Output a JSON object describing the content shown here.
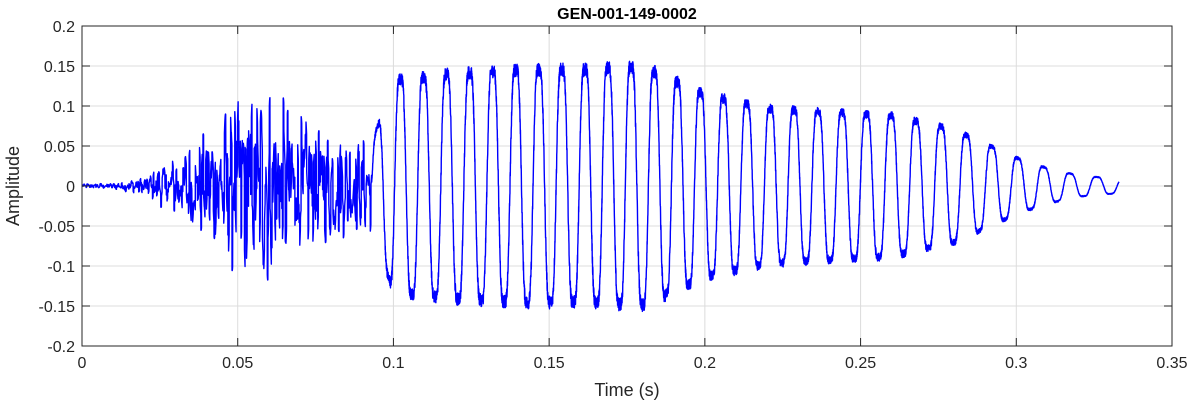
{
  "chart_data": {
    "type": "line",
    "title": "GEN-001-149-0002",
    "xlabel": "Time (s)",
    "ylabel": "Amplitude",
    "xlim": [
      0,
      0.35
    ],
    "ylim": [
      -0.2,
      0.2
    ],
    "grid": true,
    "xticks": [
      0,
      0.05,
      0.1,
      0.15,
      0.2,
      0.25,
      0.3,
      0.35
    ],
    "xtick_labels": [
      "0",
      "0.05",
      "0.1",
      "0.15",
      "0.2",
      "0.25",
      "0.3",
      "0.35"
    ],
    "yticks": [
      -0.2,
      -0.15,
      -0.1,
      -0.05,
      0,
      0.05,
      0.1,
      0.15,
      0.2
    ],
    "ytick_labels": [
      "-0.2",
      "-0.15",
      "-0.1",
      "-0.05",
      "0",
      "0.05",
      "0.1",
      "0.15",
      "0.2"
    ],
    "series": [
      {
        "color": "#0000ff",
        "duration": 0.333,
        "envelope_times": [
          0,
          0.01,
          0.02,
          0.03,
          0.04,
          0.05,
          0.06,
          0.07,
          0.08,
          0.09,
          0.093,
          0.1,
          0.12,
          0.14,
          0.16,
          0.18,
          0.2,
          0.22,
          0.24,
          0.26,
          0.28,
          0.29,
          0.3,
          0.31,
          0.32,
          0.333
        ],
        "envelope_amplitudes": [
          0.003,
          0.004,
          0.012,
          0.04,
          0.07,
          0.12,
          0.13,
          0.09,
          0.07,
          0.06,
          0.06,
          0.15,
          0.16,
          0.165,
          0.165,
          0.17,
          0.13,
          0.11,
          0.105,
          0.1,
          0.08,
          0.06,
          0.04,
          0.025,
          0.015,
          0.01
        ]
      }
    ]
  }
}
